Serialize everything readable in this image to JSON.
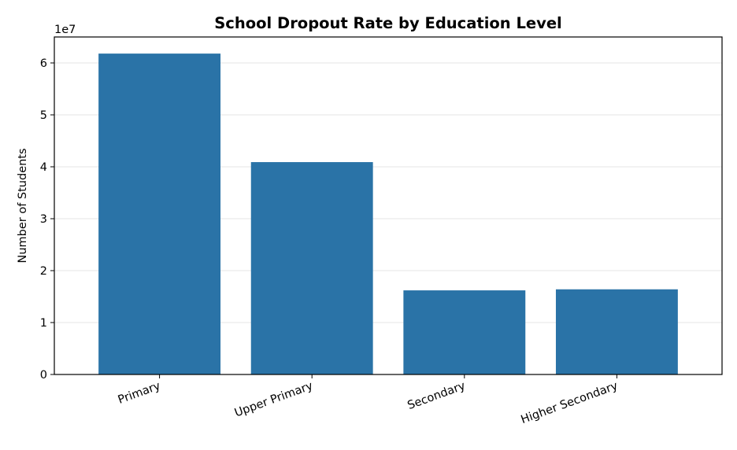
{
  "chart_data": {
    "type": "bar",
    "title": "School Dropout Rate by Education Level",
    "xlabel": "",
    "ylabel": "Number of Students",
    "y_offset_label": "1e7",
    "y_scale": 10000000,
    "categories": [
      "Primary",
      "Upper Primary",
      "Secondary",
      "Higher Secondary"
    ],
    "values": [
      61800000,
      40900000,
      16200000,
      16400000
    ],
    "ylim": [
      0,
      65000000
    ],
    "yticks": [
      0,
      10000000,
      20000000,
      30000000,
      40000000,
      50000000,
      60000000
    ],
    "ytick_labels": [
      "0",
      "1",
      "2",
      "3",
      "4",
      "5",
      "6"
    ],
    "grid": "horizontal",
    "bar_color": "#2a73a7",
    "grid_color": "#e5e5e5",
    "xtick_rotation_deg": -20
  }
}
